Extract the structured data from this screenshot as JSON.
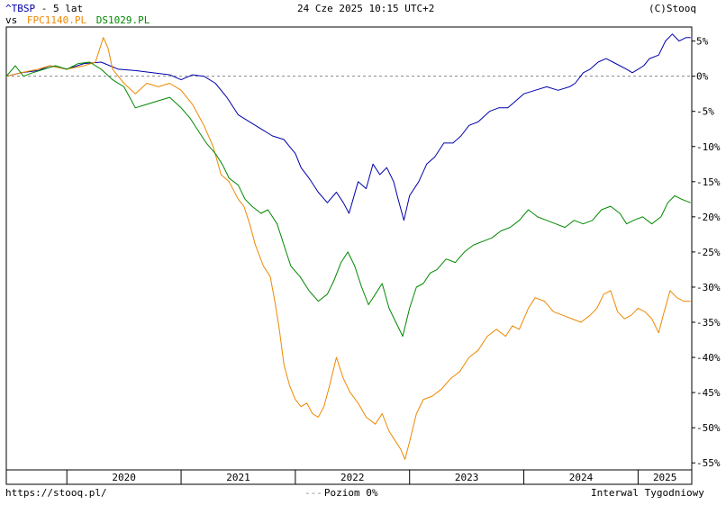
{
  "header": {
    "symbol": "^TBSP",
    "period": " - 5 lat",
    "vs_prefix": "vs",
    "compare1": "FPC1140.PL",
    "compare2": "DS1029.PL",
    "timestamp": "24 Cze 2025 10:15 UTC+2",
    "copyright": "(C)Stooq"
  },
  "footer": {
    "url": "https://stooq.pl/",
    "legend_dash": "---",
    "legend_level": "Poziom 0%",
    "interval": "Interwal Tygodniowy"
  },
  "colors": {
    "tbsp": "#0000aa",
    "fpc": "#ee8800",
    "ds": "#008800",
    "zero_line": "#888888",
    "frame": "#000000",
    "axis_text": "#000000"
  },
  "chart_data": {
    "type": "line",
    "x_axis": {
      "start": 2019.47,
      "end": 2025.47,
      "year_labels": [
        "2020",
        "2021",
        "2022",
        "2023",
        "2024",
        "2025"
      ]
    },
    "y_axis": {
      "min": -56,
      "max": 7,
      "ticks": [
        5,
        0,
        -5,
        -10,
        -15,
        -20,
        -25,
        -30,
        -35,
        -40,
        -45,
        -50,
        -55
      ],
      "unit": "%"
    },
    "reference_line": {
      "value": 0,
      "style": "dashed"
    },
    "series": [
      {
        "name": "^TBSP",
        "color": "#0000aa",
        "points": [
          [
            2019.47,
            0
          ],
          [
            2019.6,
            0.5
          ],
          [
            2019.75,
            0.8
          ],
          [
            2019.85,
            1.5
          ],
          [
            2020.0,
            1.0
          ],
          [
            2020.15,
            1.8
          ],
          [
            2020.3,
            2.0
          ],
          [
            2020.45,
            1.0
          ],
          [
            2020.6,
            0.8
          ],
          [
            2020.75,
            0.5
          ],
          [
            2020.9,
            0.2
          ],
          [
            2021.0,
            -0.5
          ],
          [
            2021.1,
            0.2
          ],
          [
            2021.2,
            0.0
          ],
          [
            2021.3,
            -1.0
          ],
          [
            2021.4,
            -3.0
          ],
          [
            2021.5,
            -5.5
          ],
          [
            2021.6,
            -6.5
          ],
          [
            2021.7,
            -7.5
          ],
          [
            2021.8,
            -8.5
          ],
          [
            2021.9,
            -9.0
          ],
          [
            2021.95,
            -10.0
          ],
          [
            2022.0,
            -11.0
          ],
          [
            2022.05,
            -13.0
          ],
          [
            2022.12,
            -14.5
          ],
          [
            2022.2,
            -16.5
          ],
          [
            2022.28,
            -18.0
          ],
          [
            2022.36,
            -16.5
          ],
          [
            2022.42,
            -18.0
          ],
          [
            2022.47,
            -19.5
          ],
          [
            2022.55,
            -15.0
          ],
          [
            2022.62,
            -16.0
          ],
          [
            2022.68,
            -12.5
          ],
          [
            2022.74,
            -14.0
          ],
          [
            2022.8,
            -13.0
          ],
          [
            2022.86,
            -15.0
          ],
          [
            2022.9,
            -17.5
          ],
          [
            2022.95,
            -20.5
          ],
          [
            2023.0,
            -17.0
          ],
          [
            2023.08,
            -15.0
          ],
          [
            2023.15,
            -12.5
          ],
          [
            2023.22,
            -11.5
          ],
          [
            2023.3,
            -9.5
          ],
          [
            2023.38,
            -9.5
          ],
          [
            2023.45,
            -8.5
          ],
          [
            2023.52,
            -7.0
          ],
          [
            2023.6,
            -6.5
          ],
          [
            2023.7,
            -5.0
          ],
          [
            2023.78,
            -4.5
          ],
          [
            2023.86,
            -4.5
          ],
          [
            2023.93,
            -3.5
          ],
          [
            2024.0,
            -2.5
          ],
          [
            2024.1,
            -2.0
          ],
          [
            2024.2,
            -1.5
          ],
          [
            2024.3,
            -2.0
          ],
          [
            2024.4,
            -1.5
          ],
          [
            2024.45,
            -1.0
          ],
          [
            2024.52,
            0.5
          ],
          [
            2024.58,
            1.0
          ],
          [
            2024.65,
            2.0
          ],
          [
            2024.72,
            2.5
          ],
          [
            2024.78,
            2.0
          ],
          [
            2024.84,
            1.5
          ],
          [
            2024.9,
            1.0
          ],
          [
            2024.95,
            0.5
          ],
          [
            2025.0,
            1.0
          ],
          [
            2025.05,
            1.5
          ],
          [
            2025.1,
            2.5
          ],
          [
            2025.18,
            3.0
          ],
          [
            2025.24,
            5.0
          ],
          [
            2025.3,
            6.0
          ],
          [
            2025.36,
            5.0
          ],
          [
            2025.42,
            5.5
          ],
          [
            2025.46,
            5.5
          ]
        ]
      },
      {
        "name": "FPC1140.PL",
        "color": "#ee8800",
        "points": [
          [
            2019.47,
            0
          ],
          [
            2019.6,
            0.5
          ],
          [
            2019.75,
            1.0
          ],
          [
            2019.85,
            1.5
          ],
          [
            2020.0,
            1.0
          ],
          [
            2020.15,
            1.5
          ],
          [
            2020.25,
            2.0
          ],
          [
            2020.32,
            5.5
          ],
          [
            2020.36,
            4.0
          ],
          [
            2020.4,
            1.0
          ],
          [
            2020.5,
            -1.0
          ],
          [
            2020.6,
            -2.5
          ],
          [
            2020.7,
            -1.0
          ],
          [
            2020.8,
            -1.5
          ],
          [
            2020.9,
            -1.0
          ],
          [
            2021.0,
            -2.0
          ],
          [
            2021.1,
            -4.0
          ],
          [
            2021.2,
            -7.0
          ],
          [
            2021.28,
            -10.0
          ],
          [
            2021.35,
            -14.0
          ],
          [
            2021.42,
            -15.0
          ],
          [
            2021.5,
            -17.5
          ],
          [
            2021.55,
            -18.5
          ],
          [
            2021.6,
            -21.0
          ],
          [
            2021.65,
            -24.0
          ],
          [
            2021.72,
            -27.0
          ],
          [
            2021.78,
            -28.5
          ],
          [
            2021.82,
            -32.0
          ],
          [
            2021.86,
            -36.0
          ],
          [
            2021.9,
            -41.0
          ],
          [
            2021.95,
            -44.0
          ],
          [
            2022.0,
            -46.0
          ],
          [
            2022.05,
            -47.0
          ],
          [
            2022.1,
            -46.5
          ],
          [
            2022.15,
            -48.0
          ],
          [
            2022.2,
            -48.5
          ],
          [
            2022.25,
            -47.0
          ],
          [
            2022.3,
            -44.0
          ],
          [
            2022.36,
            -40.0
          ],
          [
            2022.42,
            -43.0
          ],
          [
            2022.48,
            -45.0
          ],
          [
            2022.55,
            -46.5
          ],
          [
            2022.62,
            -48.5
          ],
          [
            2022.7,
            -49.5
          ],
          [
            2022.76,
            -48.0
          ],
          [
            2022.82,
            -50.5
          ],
          [
            2022.88,
            -52.0
          ],
          [
            2022.92,
            -53.0
          ],
          [
            2022.96,
            -54.5
          ],
          [
            2023.0,
            -52.0
          ],
          [
            2023.06,
            -48.0
          ],
          [
            2023.12,
            -46.0
          ],
          [
            2023.2,
            -45.5
          ],
          [
            2023.28,
            -44.5
          ],
          [
            2023.36,
            -43.0
          ],
          [
            2023.44,
            -42.0
          ],
          [
            2023.52,
            -40.0
          ],
          [
            2023.6,
            -39.0
          ],
          [
            2023.68,
            -37.0
          ],
          [
            2023.76,
            -36.0
          ],
          [
            2023.84,
            -37.0
          ],
          [
            2023.9,
            -35.5
          ],
          [
            2023.96,
            -36.0
          ],
          [
            2024.04,
            -33.0
          ],
          [
            2024.1,
            -31.5
          ],
          [
            2024.18,
            -32.0
          ],
          [
            2024.26,
            -33.5
          ],
          [
            2024.34,
            -34.0
          ],
          [
            2024.42,
            -34.5
          ],
          [
            2024.5,
            -35.0
          ],
          [
            2024.58,
            -34.0
          ],
          [
            2024.64,
            -33.0
          ],
          [
            2024.7,
            -31.0
          ],
          [
            2024.76,
            -30.5
          ],
          [
            2024.82,
            -33.5
          ],
          [
            2024.88,
            -34.5
          ],
          [
            2024.94,
            -34.0
          ],
          [
            2025.0,
            -33.0
          ],
          [
            2025.06,
            -33.5
          ],
          [
            2025.12,
            -34.5
          ],
          [
            2025.18,
            -36.5
          ],
          [
            2025.22,
            -34.0
          ],
          [
            2025.28,
            -30.5
          ],
          [
            2025.34,
            -31.5
          ],
          [
            2025.4,
            -32.0
          ],
          [
            2025.46,
            -32.0
          ]
        ]
      },
      {
        "name": "DS1029.PL",
        "color": "#008800",
        "points": [
          [
            2019.47,
            0
          ],
          [
            2019.55,
            1.5
          ],
          [
            2019.62,
            0.0
          ],
          [
            2019.7,
            0.5
          ],
          [
            2019.8,
            1.0
          ],
          [
            2019.9,
            1.5
          ],
          [
            2020.0,
            1.0
          ],
          [
            2020.1,
            1.8
          ],
          [
            2020.2,
            2.0
          ],
          [
            2020.3,
            1.0
          ],
          [
            2020.4,
            -0.5
          ],
          [
            2020.5,
            -1.5
          ],
          [
            2020.55,
            -3.0
          ],
          [
            2020.6,
            -4.5
          ],
          [
            2020.7,
            -4.0
          ],
          [
            2020.8,
            -3.5
          ],
          [
            2020.9,
            -3.0
          ],
          [
            2021.0,
            -4.5
          ],
          [
            2021.08,
            -6.0
          ],
          [
            2021.16,
            -8.0
          ],
          [
            2021.22,
            -9.5
          ],
          [
            2021.3,
            -11.0
          ],
          [
            2021.36,
            -12.5
          ],
          [
            2021.42,
            -14.5
          ],
          [
            2021.5,
            -15.5
          ],
          [
            2021.56,
            -17.5
          ],
          [
            2021.62,
            -18.5
          ],
          [
            2021.7,
            -19.5
          ],
          [
            2021.76,
            -19.0
          ],
          [
            2021.84,
            -21.0
          ],
          [
            2021.9,
            -24.0
          ],
          [
            2021.96,
            -27.0
          ],
          [
            2022.04,
            -28.5
          ],
          [
            2022.12,
            -30.5
          ],
          [
            2022.2,
            -32.0
          ],
          [
            2022.28,
            -31.0
          ],
          [
            2022.34,
            -29.0
          ],
          [
            2022.4,
            -26.5
          ],
          [
            2022.46,
            -25.0
          ],
          [
            2022.52,
            -27.0
          ],
          [
            2022.58,
            -30.0
          ],
          [
            2022.64,
            -32.5
          ],
          [
            2022.7,
            -31.0
          ],
          [
            2022.76,
            -29.5
          ],
          [
            2022.82,
            -33.0
          ],
          [
            2022.88,
            -35.0
          ],
          [
            2022.94,
            -37.0
          ],
          [
            2023.0,
            -33.0
          ],
          [
            2023.06,
            -30.0
          ],
          [
            2023.12,
            -29.5
          ],
          [
            2023.18,
            -28.0
          ],
          [
            2023.24,
            -27.5
          ],
          [
            2023.32,
            -26.0
          ],
          [
            2023.4,
            -26.5
          ],
          [
            2023.48,
            -25.0
          ],
          [
            2023.56,
            -24.0
          ],
          [
            2023.64,
            -23.5
          ],
          [
            2023.72,
            -23.0
          ],
          [
            2023.8,
            -22.0
          ],
          [
            2023.88,
            -21.5
          ],
          [
            2023.96,
            -20.5
          ],
          [
            2024.04,
            -19.0
          ],
          [
            2024.12,
            -20.0
          ],
          [
            2024.2,
            -20.5
          ],
          [
            2024.28,
            -21.0
          ],
          [
            2024.36,
            -21.5
          ],
          [
            2024.44,
            -20.5
          ],
          [
            2024.52,
            -21.0
          ],
          [
            2024.6,
            -20.5
          ],
          [
            2024.68,
            -19.0
          ],
          [
            2024.76,
            -18.5
          ],
          [
            2024.84,
            -19.5
          ],
          [
            2024.9,
            -21.0
          ],
          [
            2024.96,
            -20.5
          ],
          [
            2025.04,
            -20.0
          ],
          [
            2025.12,
            -21.0
          ],
          [
            2025.2,
            -20.0
          ],
          [
            2025.26,
            -18.0
          ],
          [
            2025.32,
            -17.0
          ],
          [
            2025.38,
            -17.5
          ],
          [
            2025.46,
            -18.0
          ]
        ]
      }
    ]
  }
}
